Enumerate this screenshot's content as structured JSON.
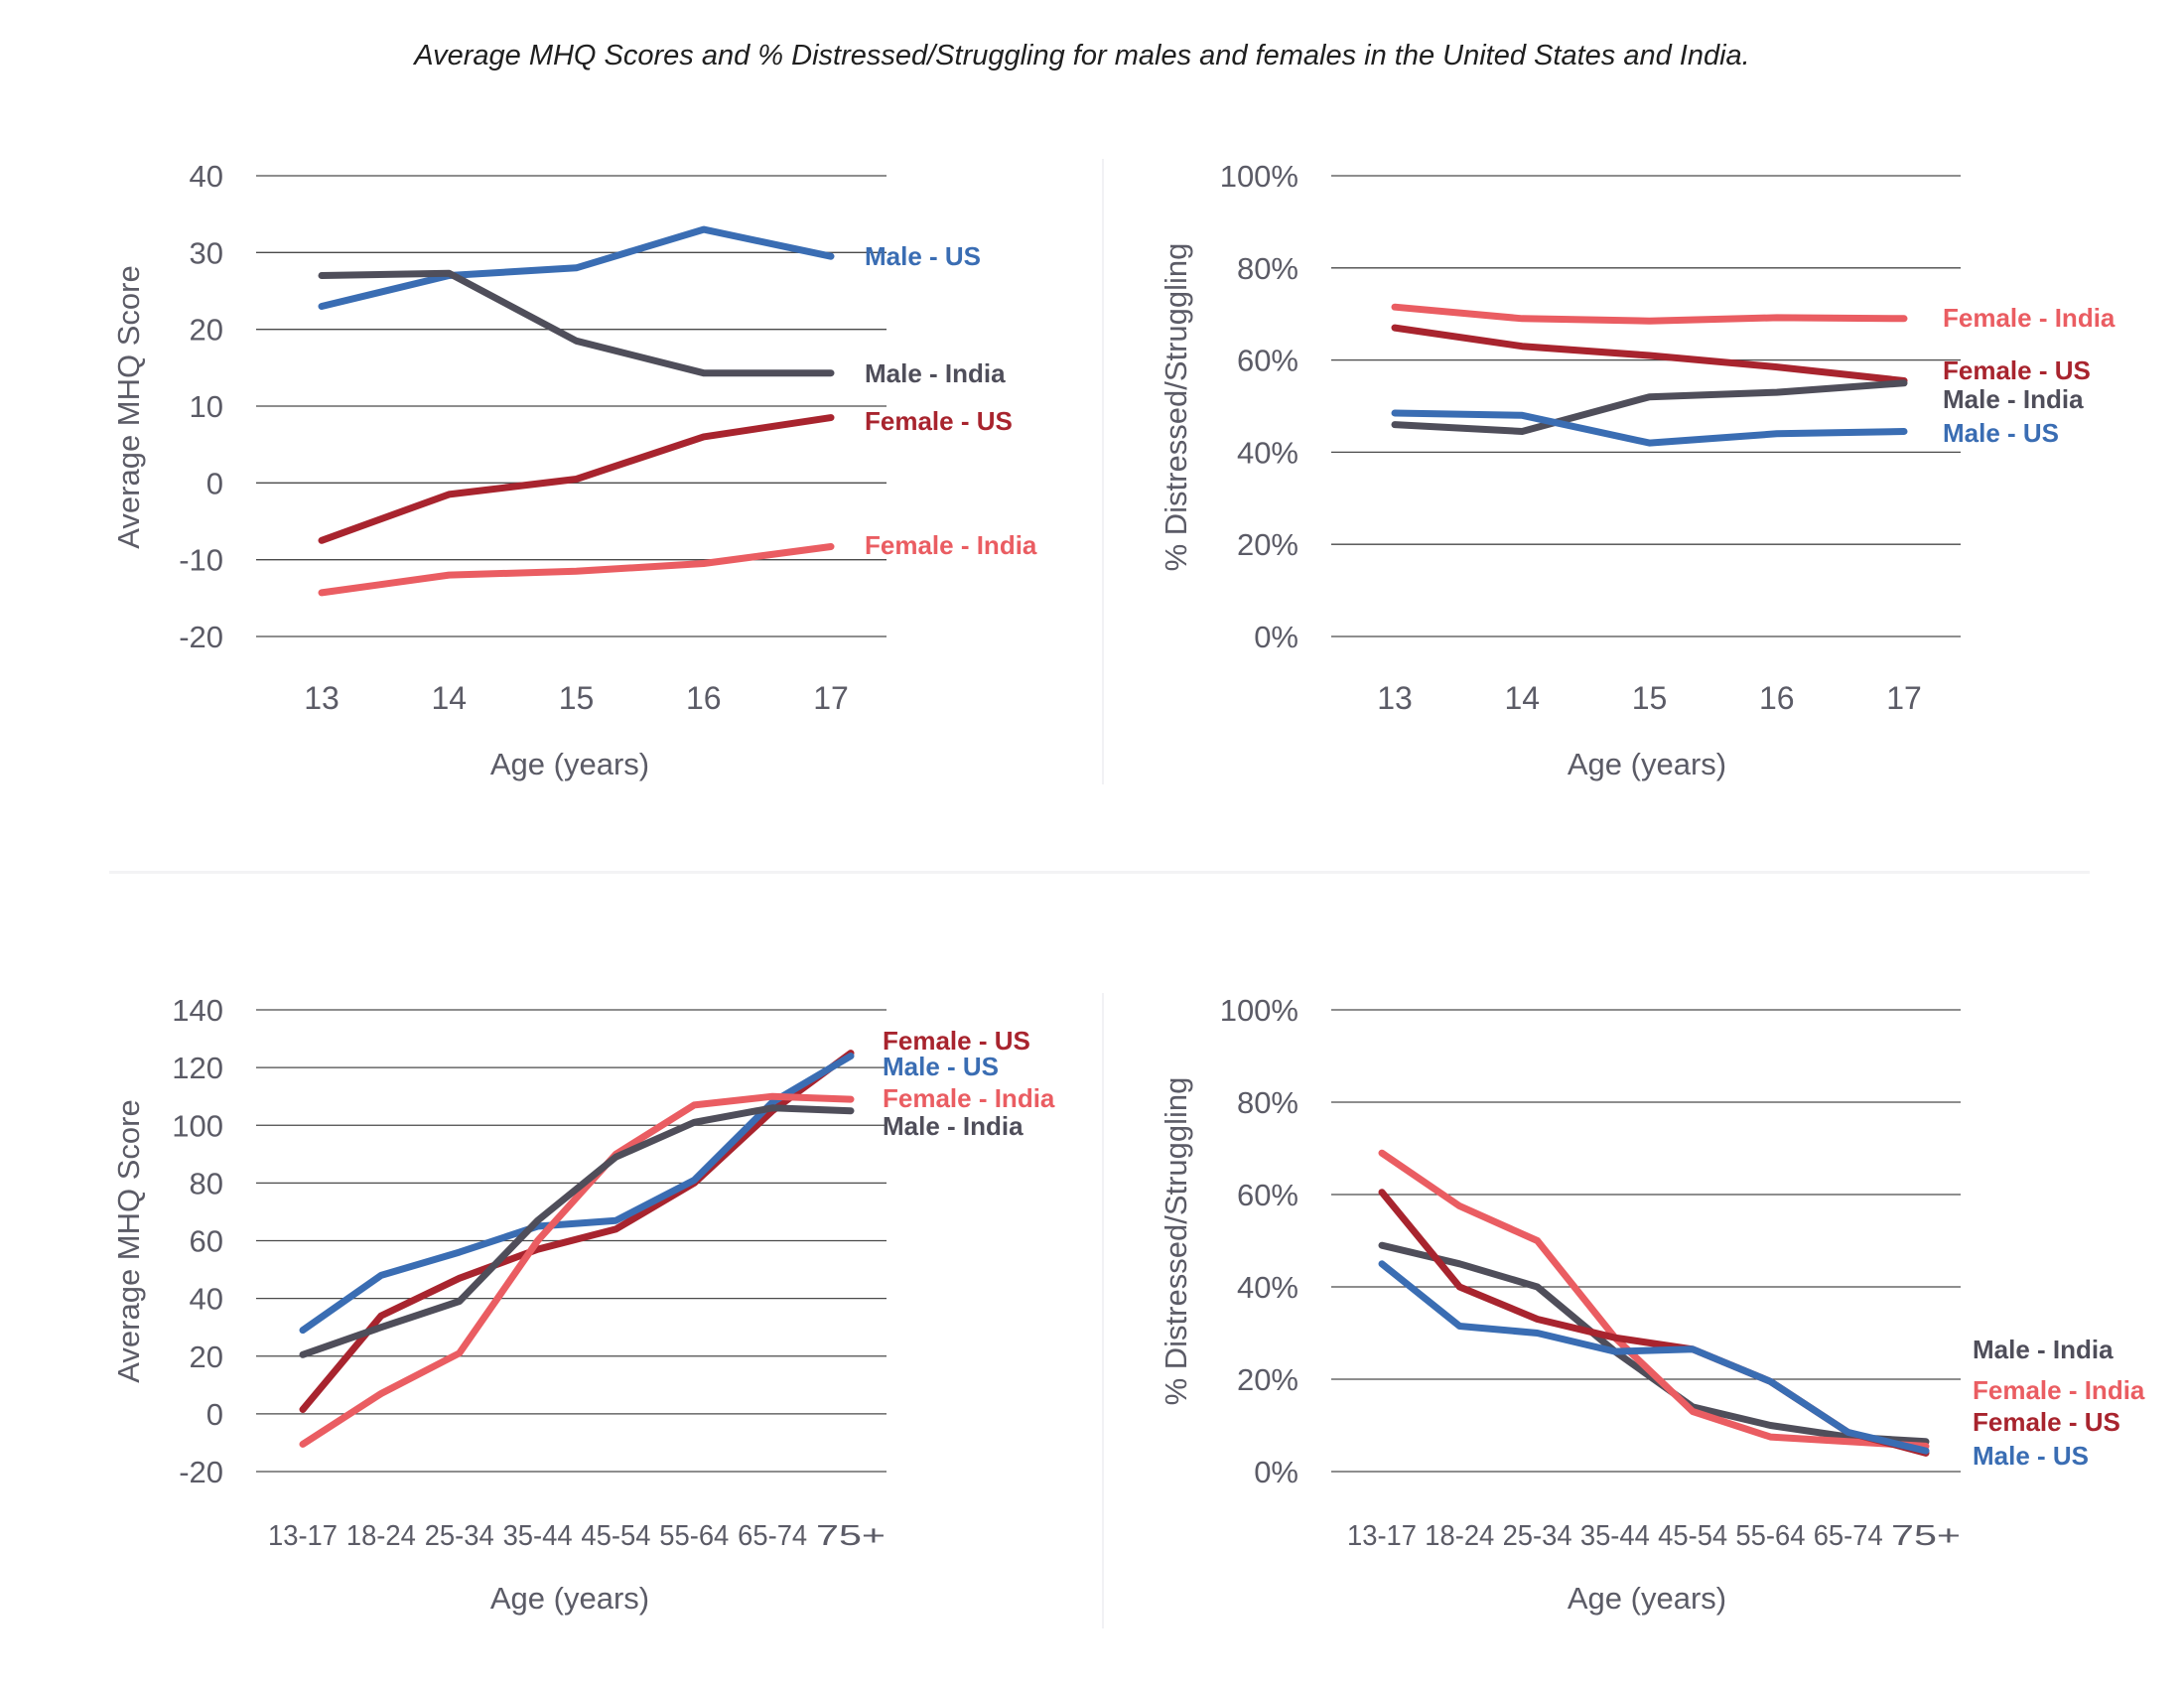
{
  "title": "Average MHQ Scores and % Distressed/Struggling for males and females in the United States and India.",
  "colors": {
    "Male - US": "#3a6db3",
    "Male - India": "#4f4e5a",
    "Female - US": "#a8242e",
    "Female - India": "#ea5d62",
    "grid": "#4a4a4a",
    "text": "#5b5b66"
  },
  "chart_data": [
    {
      "type": "line",
      "xlabel": "Age (years)",
      "ylabel": "Average MHQ Score",
      "categories": [
        "13",
        "14",
        "15",
        "16",
        "17"
      ],
      "yticks": [
        "40",
        "30",
        "20",
        "10",
        "0",
        "-10",
        "-20"
      ],
      "ylim": [
        -20,
        40
      ],
      "series": [
        {
          "name": "Male - US",
          "values": [
            23,
            27,
            28,
            33,
            29.5
          ]
        },
        {
          "name": "Male - India",
          "values": [
            27,
            27.3,
            18.5,
            14.3,
            14.3
          ]
        },
        {
          "name": "Female - US",
          "values": [
            -7.5,
            -1.5,
            0.5,
            6,
            8.5
          ]
        },
        {
          "name": "Female - India",
          "values": [
            -14.3,
            -12,
            -11.5,
            -10.5,
            -8.3
          ]
        }
      ]
    },
    {
      "type": "line",
      "xlabel": "Age (years)",
      "ylabel": "% Distressed/Struggling",
      "categories": [
        "13",
        "14",
        "15",
        "16",
        "17"
      ],
      "yticks": [
        "100%",
        "80%",
        "60%",
        "40%",
        "20%",
        "0%"
      ],
      "ylim": [
        0,
        100
      ],
      "series": [
        {
          "name": "Female - India",
          "values": [
            71.5,
            69,
            68.5,
            69.2,
            69
          ]
        },
        {
          "name": "Female - US",
          "values": [
            67,
            63,
            61,
            58.5,
            55.5
          ]
        },
        {
          "name": "Male - India",
          "values": [
            46,
            44.5,
            52,
            53,
            55
          ]
        },
        {
          "name": "Male - US",
          "values": [
            48.5,
            48,
            42,
            44,
            44.5
          ]
        }
      ]
    },
    {
      "type": "line",
      "xlabel": "Age (years)",
      "ylabel": "Average MHQ Score",
      "categories": [
        "13-17",
        "18-24",
        "25-34",
        "35-44",
        "45-54",
        "55-64",
        "65-74",
        "75+"
      ],
      "yticks": [
        "140",
        "120",
        "100",
        "80",
        "60",
        "40",
        "20",
        "0",
        "-20"
      ],
      "ylim": [
        -20,
        140
      ],
      "series": [
        {
          "name": "Female - US",
          "values": [
            1.5,
            34,
            47,
            57,
            64,
            80,
            105,
            125
          ]
        },
        {
          "name": "Male - US",
          "values": [
            29,
            48,
            56,
            65,
            67,
            81,
            108,
            124
          ]
        },
        {
          "name": "Female - India",
          "values": [
            -10.5,
            7,
            21,
            60,
            90,
            107,
            110,
            109
          ]
        },
        {
          "name": "Male - India",
          "values": [
            20.5,
            30,
            39,
            67,
            89,
            101,
            106,
            105
          ]
        }
      ]
    },
    {
      "type": "line",
      "xlabel": "Age (years)",
      "ylabel": "% Distressed/Struggling",
      "categories": [
        "13-17",
        "18-24",
        "25-34",
        "35-44",
        "45-54",
        "55-64",
        "65-74",
        "75+"
      ],
      "yticks": [
        "100%",
        "80%",
        "60%",
        "40%",
        "20%",
        "0%"
      ],
      "ylim": [
        0,
        100
      ],
      "series": [
        {
          "name": "Male - India",
          "values": [
            49,
            45,
            40,
            26,
            14,
            10,
            7.5,
            6.5
          ]
        },
        {
          "name": "Female - India",
          "values": [
            69,
            57.5,
            50,
            29,
            13,
            7.5,
            6.5,
            5.5
          ]
        },
        {
          "name": "Female - US",
          "values": [
            60.5,
            40,
            33,
            29,
            26.5,
            19.5,
            8.5,
            4
          ]
        },
        {
          "name": "Male - US",
          "values": [
            45,
            31.5,
            30,
            26,
            26.5,
            19.5,
            8.5,
            4.5
          ]
        }
      ]
    }
  ]
}
